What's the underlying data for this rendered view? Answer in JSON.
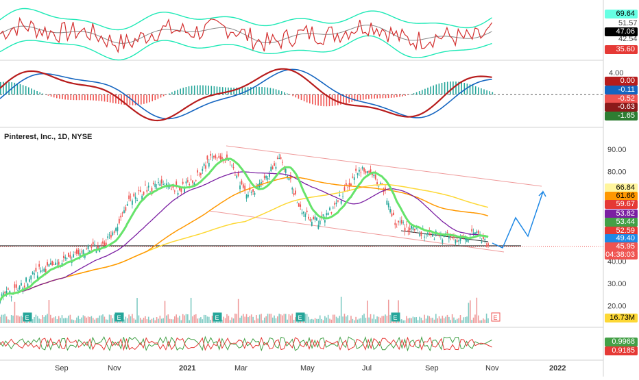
{
  "chart_data": {
    "type": "candlestick",
    "title": "Pinterest, Inc., 1D, NYSE",
    "x_ticks": [
      "Sep",
      "Nov",
      "2021",
      "Mar",
      "May",
      "Jul",
      "Sep",
      "Nov",
      "2022"
    ],
    "price_axis": {
      "ticks": [
        "90.00",
        "80.00",
        "40.00",
        "30.00",
        "20.00"
      ],
      "ylim": [
        15,
        93
      ],
      "current_price": "45.95",
      "countdown": "04:38:03"
    },
    "price_labels": [
      {
        "value": "66.84",
        "bg": "#fff59d",
        "fg": "#000000"
      },
      {
        "value": "61.66",
        "bg": "#ff9800",
        "fg": "#000000"
      },
      {
        "value": "59.67",
        "bg": "#e53935",
        "fg": "#ffffff"
      },
      {
        "value": "53.82",
        "bg": "#7b1fa2",
        "fg": "#ffffff"
      },
      {
        "value": "53.44",
        "bg": "#43a047",
        "fg": "#ffffff"
      },
      {
        "value": "52.59",
        "bg": "#e53935",
        "fg": "#ffffff"
      },
      {
        "value": "49.40",
        "bg": "#1e88e5",
        "fg": "#ffffff"
      },
      {
        "value": "45.95",
        "bg": "#ef5350",
        "fg": "#ffffff"
      }
    ],
    "volume_label": {
      "value": "16.73M",
      "bg": "#fdd835",
      "fg": "#000000"
    },
    "earnings_marker": "E",
    "top_panel": {
      "ticks": [
        "51.57",
        "42.54"
      ],
      "labels": [
        {
          "value": "69.64",
          "bg": "#66ffe3",
          "fg": "#000000"
        },
        {
          "value": "47.06",
          "bg": "#000000",
          "fg": "#ffffff"
        },
        {
          "value": "35.60",
          "bg": "#e53935",
          "fg": "#ffffff"
        }
      ],
      "ylim": [
        30,
        75
      ]
    },
    "macd_panel": {
      "ticks": [
        "4.00"
      ],
      "labels": [
        {
          "value": "0.00",
          "bg": "#b71c1c",
          "fg": "#ffffff"
        },
        {
          "value": "-0.11",
          "bg": "#1565c0",
          "fg": "#ffffff"
        },
        {
          "value": "-0.52",
          "bg": "#ef5350",
          "fg": "#ffffff"
        },
        {
          "value": "-0.63",
          "bg": "#8b1a1a",
          "fg": "#ffffff"
        },
        {
          "value": "-1.65",
          "bg": "#2e7d32",
          "fg": "#ffffff"
        }
      ],
      "ylim": [
        -9,
        9
      ]
    },
    "corr_panel": {
      "ticks": [],
      "labels": [
        {
          "value": "0.9968",
          "bg": "#43a047",
          "fg": "#ffffff"
        },
        {
          "value": "0.9185",
          "bg": "#e53935",
          "fg": "#ffffff"
        }
      ]
    },
    "price_series": [
      {
        "x": 0,
        "v": 24
      },
      {
        "x": 0.03,
        "v": 27
      },
      {
        "x": 0.06,
        "v": 35
      },
      {
        "x": 0.09,
        "v": 38
      },
      {
        "x": 0.12,
        "v": 41
      },
      {
        "x": 0.15,
        "v": 45
      },
      {
        "x": 0.18,
        "v": 47
      },
      {
        "x": 0.2,
        "v": 55
      },
      {
        "x": 0.22,
        "v": 66
      },
      {
        "x": 0.25,
        "v": 72
      },
      {
        "x": 0.28,
        "v": 74
      },
      {
        "x": 0.31,
        "v": 72
      },
      {
        "x": 0.34,
        "v": 78
      },
      {
        "x": 0.37,
        "v": 88
      },
      {
        "x": 0.4,
        "v": 83
      },
      {
        "x": 0.42,
        "v": 70
      },
      {
        "x": 0.45,
        "v": 74
      },
      {
        "x": 0.48,
        "v": 86
      },
      {
        "x": 0.5,
        "v": 75
      },
      {
        "x": 0.52,
        "v": 62
      },
      {
        "x": 0.55,
        "v": 57
      },
      {
        "x": 0.58,
        "v": 66
      },
      {
        "x": 0.61,
        "v": 78
      },
      {
        "x": 0.63,
        "v": 81
      },
      {
        "x": 0.66,
        "v": 72
      },
      {
        "x": 0.68,
        "v": 57
      },
      {
        "x": 0.71,
        "v": 54
      },
      {
        "x": 0.74,
        "v": 52
      },
      {
        "x": 0.77,
        "v": 51
      },
      {
        "x": 0.8,
        "v": 49
      },
      {
        "x": 0.82,
        "v": 53
      },
      {
        "x": 0.84,
        "v": 46
      }
    ]
  }
}
